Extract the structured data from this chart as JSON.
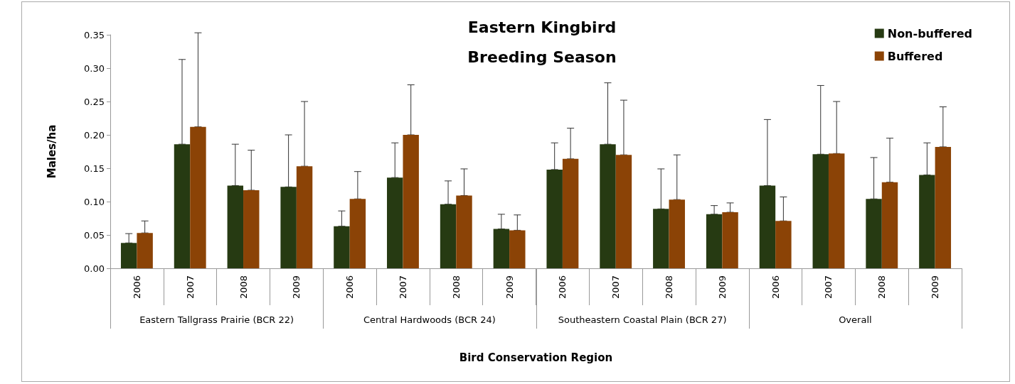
{
  "chart_data": {
    "type": "bar",
    "title": "Eastern Kingbird",
    "subtitle": "Breeding Season",
    "xlabel": "Bird Conservation Region",
    "ylabel": "Males/ha",
    "categories": [
      "2006",
      "2007",
      "2008",
      "2009",
      "2006",
      "2007",
      "2008",
      "2009",
      "2006",
      "2007",
      "2008",
      "2009",
      "2006",
      "2007",
      "2008",
      "2009"
    ],
    "annotations": [
      "Eastern Tallgrass Prairie (BCR 22)",
      "Central Hardwoods (BCR 24)",
      "Southeastern Coastal Plain (BCR 27)",
      "Overall"
    ],
    "series": [
      {
        "name": "Non-buffered",
        "color": "#263a12",
        "values": [
          0.038,
          0.186,
          0.124,
          0.122,
          0.063,
          0.136,
          0.096,
          0.059,
          0.148,
          0.186,
          0.089,
          0.081,
          0.124,
          0.171,
          0.104,
          0.14
        ],
        "errors": [
          [
            0.038,
            0.052
          ],
          [
            0.186,
            0.313
          ],
          [
            0.124,
            0.186
          ],
          [
            0.122,
            0.2
          ],
          [
            0.063,
            0.086
          ],
          [
            0.136,
            0.188
          ],
          [
            0.096,
            0.131
          ],
          [
            0.059,
            0.081
          ],
          [
            0.148,
            0.188
          ],
          [
            0.186,
            0.278
          ],
          [
            0.089,
            0.149
          ],
          [
            0.081,
            0.094
          ],
          [
            0.124,
            0.223
          ],
          [
            0.171,
            0.274
          ],
          [
            0.104,
            0.166
          ],
          [
            0.14,
            0.188
          ]
        ]
      },
      {
        "name": "Buffered",
        "color": "#8b4306",
        "values": [
          0.053,
          0.212,
          0.117,
          0.153,
          0.104,
          0.2,
          0.109,
          0.057,
          0.164,
          0.17,
          0.103,
          0.084,
          0.071,
          0.172,
          0.129,
          0.182
        ],
        "errors": [
          [
            0.053,
            0.071
          ],
          [
            0.212,
            0.353
          ],
          [
            0.117,
            0.177
          ],
          [
            0.153,
            0.25
          ],
          [
            0.104,
            0.145
          ],
          [
            0.2,
            0.275
          ],
          [
            0.109,
            0.149
          ],
          [
            0.057,
            0.08
          ],
          [
            0.164,
            0.21
          ],
          [
            0.17,
            0.252
          ],
          [
            0.103,
            0.17
          ],
          [
            0.084,
            0.098
          ],
          [
            0.071,
            0.107
          ],
          [
            0.172,
            0.25
          ],
          [
            0.129,
            0.195
          ],
          [
            0.182,
            0.242
          ]
        ]
      }
    ],
    "ylim": [
      0,
      0.35
    ],
    "yticks": [
      {
        "value": 0,
        "label": "0.00"
      },
      {
        "value": 0.05,
        "label": "0.05"
      },
      {
        "value": 0.1,
        "label": "0.10"
      },
      {
        "value": 0.15,
        "label": "0.15"
      },
      {
        "value": 0.2,
        "label": "0.20"
      },
      {
        "value": 0.25,
        "label": "0.25"
      },
      {
        "value": 0.3,
        "label": "0.30"
      },
      {
        "value": 0.35,
        "label": "0.35"
      }
    ],
    "grid": false,
    "legend": "top right"
  }
}
